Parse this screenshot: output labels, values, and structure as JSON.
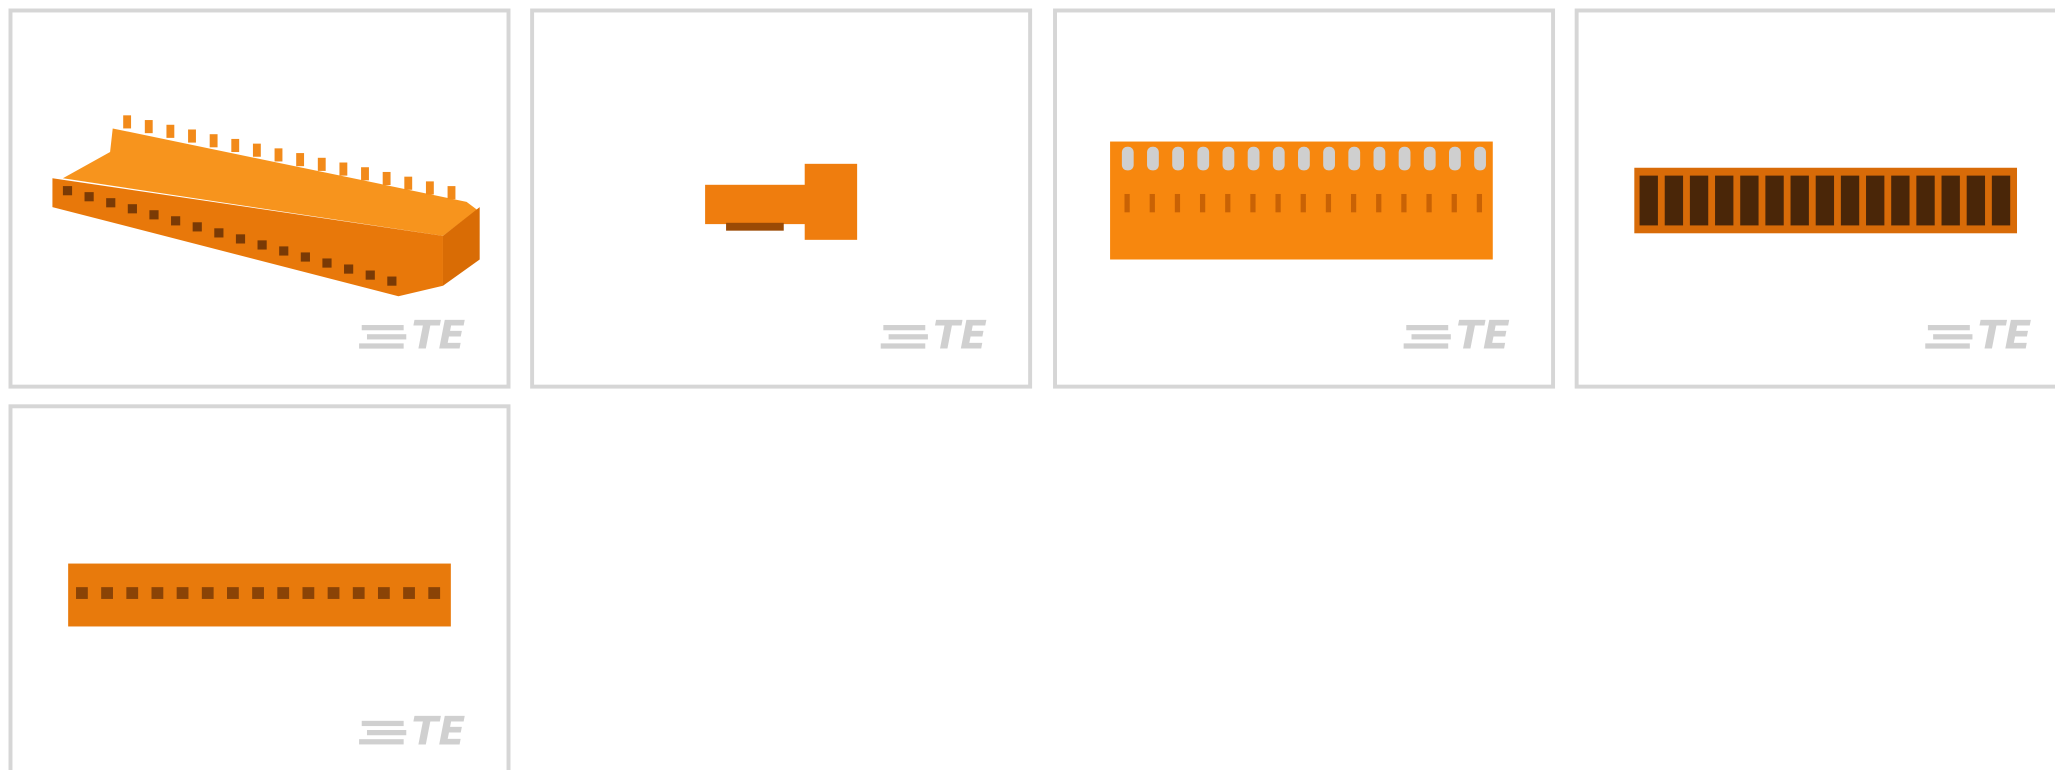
{
  "tiles": [
    {
      "logo": "TE"
    },
    {
      "logo": "TE"
    },
    {
      "logo": "TE"
    },
    {
      "logo": "TE"
    },
    {
      "logo": "TE"
    }
  ]
}
